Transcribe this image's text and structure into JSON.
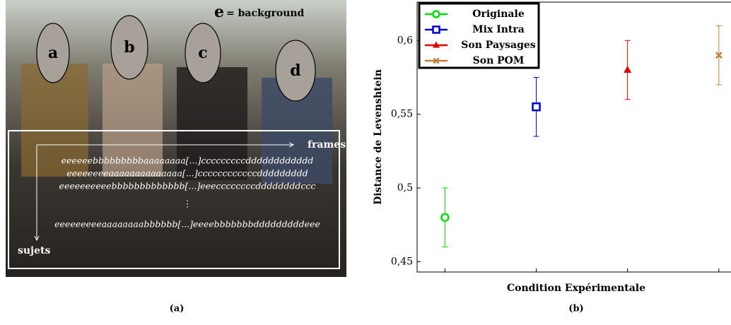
{
  "image": {
    "labels": [
      "a",
      "b",
      "c",
      "d"
    ],
    "legend_letter": "e",
    "legend_text": "= background",
    "frames_label": "frames",
    "subjects_label": "sujets",
    "sequences": [
      "eeeeeebbbbbbbbbaaaaaaaa[...]cccccccccdddddddddddd",
      "eeeeeeeeaaaaaaaaaaaaaa[...]ccccccccccccddddddddd",
      "eeeeeeeeeebbbbbbbbbbbbb[...]eeeccccccccddddddddccc",
      "⋮",
      "eeeeeeeeeaaaaaaaabbbbbb[...]eeeebbbbbbbdddddddddeee"
    ],
    "caption": "(a)"
  },
  "chart_data": {
    "type": "errorbar",
    "caption": "(b)",
    "x_label": "Condition Expérimentale",
    "y_label": "Distance de Levenshtein",
    "xlim": [
      0.695,
      4.257
    ],
    "ylim": [
      0.443,
      0.626
    ],
    "yticks": [
      {
        "value": 0.45,
        "label": "0,45"
      },
      {
        "value": 0.5,
        "label": "0,5"
      },
      {
        "value": 0.55,
        "label": "0,55"
      },
      {
        "value": 0.6,
        "label": "0,6"
      }
    ],
    "legend_position": "upper left",
    "series": [
      {
        "name": "Originale",
        "color": "#00dd00",
        "marker": "circle",
        "x": [
          1
        ],
        "values": [
          0.48
        ],
        "errors": [
          0.02
        ]
      },
      {
        "name": "Mix Intra",
        "color": "#0000cc",
        "marker": "square",
        "x": [
          2
        ],
        "values": [
          0.555
        ],
        "errors": [
          0.02
        ]
      },
      {
        "name": "Son Paysages",
        "color": "#e00000",
        "marker": "triangle",
        "x": [
          3
        ],
        "values": [
          0.58
        ],
        "errors": [
          0.02
        ]
      },
      {
        "name": "Son POM",
        "color": "#c08040",
        "marker": "cross",
        "x": [
          4
        ],
        "values": [
          0.59
        ],
        "errors": [
          0.02
        ]
      }
    ]
  }
}
